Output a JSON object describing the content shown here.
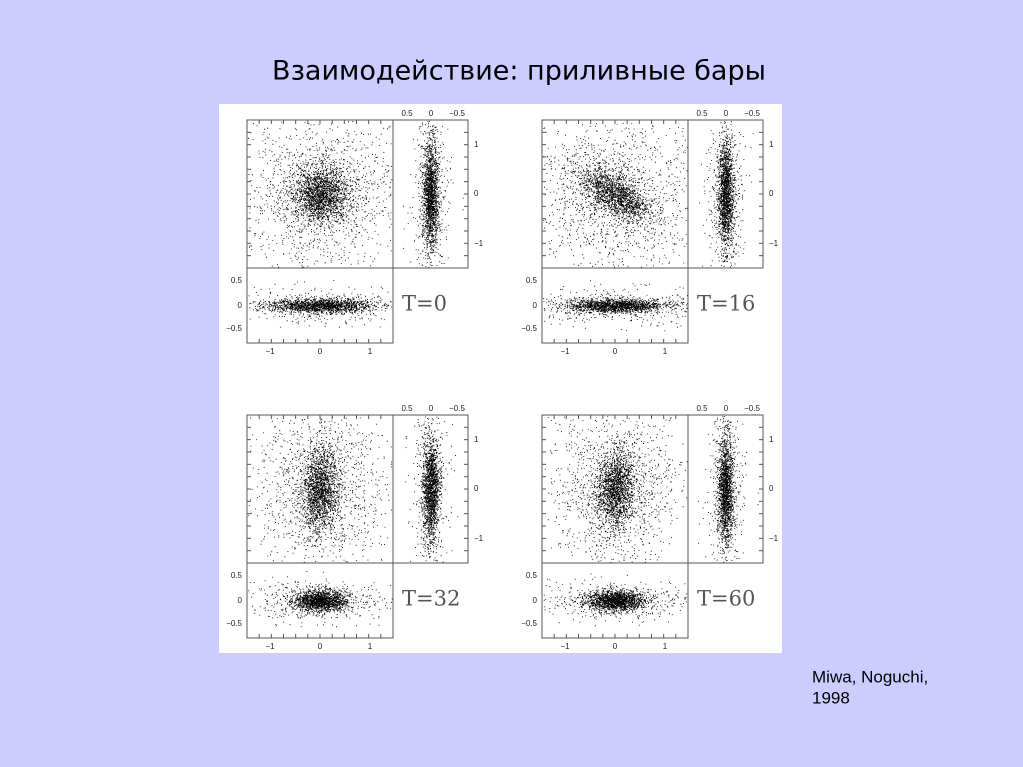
{
  "title": "Взаимодействие: приливные бары",
  "citation": [
    "Miwa, Noguchi,",
    "1998"
  ],
  "panels": [
    {
      "label": "T=0",
      "top_ticks": [
        "0.5",
        "0",
        "−0.5"
      ],
      "right_ticks": [
        "1",
        "0",
        "−1"
      ],
      "left_ticks": [
        "0.5",
        "0",
        "−0.5"
      ],
      "bottom_ticks": [
        "−1",
        "0",
        "1"
      ]
    },
    {
      "label": "T=16",
      "top_ticks": [
        "0.5",
        "0",
        "−0.5"
      ],
      "right_ticks": [
        "1",
        "0",
        "−1"
      ],
      "left_ticks": [
        "0.5",
        "0",
        "−0.5"
      ],
      "bottom_ticks": [
        "−1",
        "0",
        "1"
      ]
    },
    {
      "label": "T=32",
      "top_ticks": [
        "0.5",
        "0",
        "−0.5"
      ],
      "right_ticks": [
        "1",
        "0",
        "−1"
      ],
      "left_ticks": [
        "0.5",
        "0",
        "−0.5"
      ],
      "bottom_ticks": [
        "−1",
        "0",
        "1"
      ]
    },
    {
      "label": "T=60",
      "top_ticks": [
        "0.5",
        "0",
        "−0.5"
      ],
      "right_ticks": [
        "1",
        "0",
        "−1"
      ],
      "left_ticks": [
        "0.5",
        "0",
        "−0.5"
      ],
      "bottom_ticks": [
        "−1",
        "0",
        "1"
      ]
    }
  ]
}
